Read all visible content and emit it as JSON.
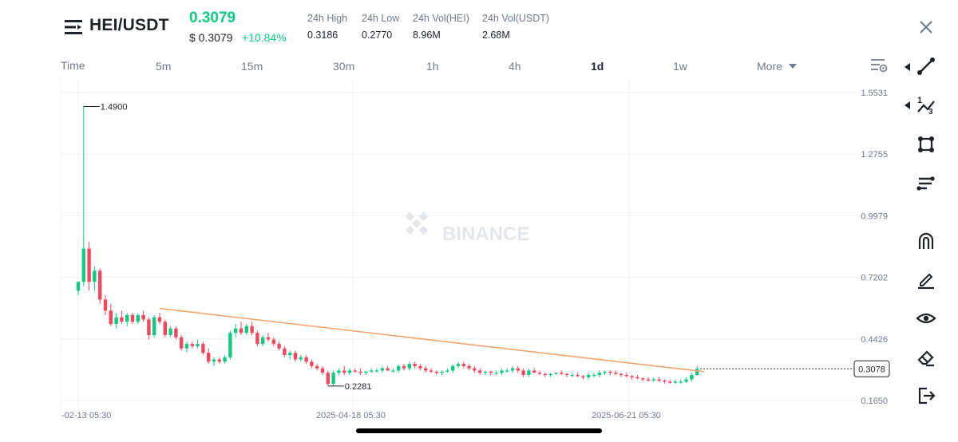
{
  "header": {
    "pair": "HEI/USDT",
    "last_price": "0.3079",
    "usd_price": "$ 0.3079",
    "change": "+10.84%",
    "stats": [
      {
        "label": "24h High",
        "value": "0.3186"
      },
      {
        "label": "24h Low",
        "value": "0.2770"
      },
      {
        "label": "24h Vol(HEI)",
        "value": "8.96M"
      },
      {
        "label": "24h Vol(USDT)",
        "value": "2.68M"
      }
    ]
  },
  "timeframes": {
    "time_label": "Time",
    "items": [
      "5m",
      "15m",
      "30m",
      "1h",
      "4h",
      "1d",
      "1w"
    ],
    "active": "1d",
    "more_label": "More"
  },
  "watermark": "BINANCE",
  "colors": {
    "up": "#0ecb81",
    "down": "#f6465d",
    "trendline": "#f0a46c",
    "grid": "#eef0f2"
  },
  "tools": [
    "trend-line-icon",
    "fibonacci-icon",
    "shape-icon",
    "multi-line-icon",
    "magnet-icon",
    "pencil-icon",
    "eye-icon",
    "eraser-icon",
    "exit-icon"
  ],
  "chart_data": {
    "type": "candlestick",
    "interval": "1d",
    "y_ticks": [
      "1.5531",
      "1.2755",
      "0.9979",
      "0.7202",
      "0.4426",
      "0.1650"
    ],
    "ylim": [
      0.165,
      1.5531
    ],
    "x_ticks": [
      "-02-13 05:30",
      "2025-04-18 05:30",
      "2025-06-21 05:30"
    ],
    "annotations": {
      "high_label": "1.4900",
      "low_label": "0.2281",
      "current_price": "0.3078"
    },
    "ohlc": [
      [
        0.66,
        0.7,
        0.64,
        0.7
      ],
      [
        0.7,
        1.49,
        0.68,
        0.85
      ],
      [
        0.85,
        0.88,
        0.66,
        0.7
      ],
      [
        0.7,
        0.77,
        0.66,
        0.75
      ],
      [
        0.75,
        0.76,
        0.6,
        0.62
      ],
      [
        0.62,
        0.64,
        0.55,
        0.57
      ],
      [
        0.57,
        0.6,
        0.5,
        0.51
      ],
      [
        0.51,
        0.56,
        0.49,
        0.54
      ],
      [
        0.54,
        0.57,
        0.51,
        0.52
      ],
      [
        0.52,
        0.56,
        0.5,
        0.55
      ],
      [
        0.55,
        0.56,
        0.51,
        0.52
      ],
      [
        0.52,
        0.56,
        0.51,
        0.55
      ],
      [
        0.55,
        0.57,
        0.52,
        0.53
      ],
      [
        0.53,
        0.54,
        0.44,
        0.46
      ],
      [
        0.46,
        0.55,
        0.45,
        0.54
      ],
      [
        0.54,
        0.56,
        0.51,
        0.52
      ],
      [
        0.52,
        0.53,
        0.45,
        0.46
      ],
      [
        0.46,
        0.5,
        0.45,
        0.49
      ],
      [
        0.49,
        0.5,
        0.44,
        0.45
      ],
      [
        0.45,
        0.46,
        0.39,
        0.4
      ],
      [
        0.4,
        0.43,
        0.38,
        0.42
      ],
      [
        0.42,
        0.43,
        0.4,
        0.41
      ],
      [
        0.41,
        0.44,
        0.4,
        0.42
      ],
      [
        0.42,
        0.43,
        0.37,
        0.38
      ],
      [
        0.38,
        0.4,
        0.33,
        0.34
      ],
      [
        0.34,
        0.36,
        0.32,
        0.35
      ],
      [
        0.35,
        0.36,
        0.33,
        0.34
      ],
      [
        0.34,
        0.37,
        0.33,
        0.36
      ],
      [
        0.36,
        0.48,
        0.35,
        0.47
      ],
      [
        0.47,
        0.51,
        0.45,
        0.49
      ],
      [
        0.49,
        0.52,
        0.46,
        0.47
      ],
      [
        0.47,
        0.51,
        0.46,
        0.5
      ],
      [
        0.5,
        0.52,
        0.46,
        0.47
      ],
      [
        0.47,
        0.48,
        0.41,
        0.42
      ],
      [
        0.42,
        0.46,
        0.41,
        0.45
      ],
      [
        0.45,
        0.47,
        0.43,
        0.44
      ],
      [
        0.44,
        0.45,
        0.41,
        0.42
      ],
      [
        0.42,
        0.43,
        0.39,
        0.4
      ],
      [
        0.4,
        0.41,
        0.36,
        0.37
      ],
      [
        0.37,
        0.39,
        0.35,
        0.38
      ],
      [
        0.38,
        0.39,
        0.34,
        0.35
      ],
      [
        0.35,
        0.37,
        0.34,
        0.36
      ],
      [
        0.36,
        0.37,
        0.33,
        0.34
      ],
      [
        0.34,
        0.35,
        0.31,
        0.32
      ],
      [
        0.32,
        0.33,
        0.3,
        0.31
      ],
      [
        0.31,
        0.32,
        0.28,
        0.29
      ],
      [
        0.29,
        0.3,
        0.23,
        0.24
      ],
      [
        0.24,
        0.3,
        0.23,
        0.29
      ],
      [
        0.29,
        0.31,
        0.28,
        0.3
      ],
      [
        0.3,
        0.32,
        0.28,
        0.29
      ],
      [
        0.29,
        0.31,
        0.28,
        0.3
      ],
      [
        0.3,
        0.31,
        0.29,
        0.295
      ],
      [
        0.295,
        0.31,
        0.28,
        0.29
      ],
      [
        0.29,
        0.3,
        0.28,
        0.295
      ],
      [
        0.295,
        0.31,
        0.29,
        0.3
      ],
      [
        0.3,
        0.31,
        0.29,
        0.3
      ],
      [
        0.3,
        0.32,
        0.29,
        0.31
      ],
      [
        0.31,
        0.32,
        0.3,
        0.3
      ],
      [
        0.3,
        0.31,
        0.29,
        0.3
      ],
      [
        0.3,
        0.33,
        0.29,
        0.32
      ],
      [
        0.32,
        0.33,
        0.3,
        0.31
      ],
      [
        0.31,
        0.34,
        0.3,
        0.33
      ],
      [
        0.33,
        0.34,
        0.31,
        0.32
      ],
      [
        0.32,
        0.33,
        0.3,
        0.31
      ],
      [
        0.31,
        0.32,
        0.29,
        0.3
      ],
      [
        0.3,
        0.31,
        0.29,
        0.295
      ],
      [
        0.295,
        0.3,
        0.28,
        0.29
      ],
      [
        0.29,
        0.3,
        0.28,
        0.295
      ],
      [
        0.295,
        0.31,
        0.29,
        0.3
      ],
      [
        0.3,
        0.33,
        0.29,
        0.32
      ],
      [
        0.32,
        0.34,
        0.31,
        0.33
      ],
      [
        0.33,
        0.34,
        0.31,
        0.32
      ],
      [
        0.32,
        0.33,
        0.3,
        0.31
      ],
      [
        0.31,
        0.32,
        0.29,
        0.3
      ],
      [
        0.3,
        0.31,
        0.28,
        0.29
      ],
      [
        0.29,
        0.3,
        0.28,
        0.295
      ],
      [
        0.295,
        0.3,
        0.28,
        0.29
      ],
      [
        0.29,
        0.3,
        0.28,
        0.29
      ],
      [
        0.29,
        0.31,
        0.28,
        0.3
      ],
      [
        0.3,
        0.31,
        0.29,
        0.3
      ],
      [
        0.3,
        0.32,
        0.29,
        0.31
      ],
      [
        0.31,
        0.32,
        0.29,
        0.3
      ],
      [
        0.3,
        0.31,
        0.27,
        0.28
      ],
      [
        0.28,
        0.31,
        0.27,
        0.3
      ],
      [
        0.3,
        0.31,
        0.29,
        0.29
      ],
      [
        0.29,
        0.3,
        0.28,
        0.285
      ],
      [
        0.285,
        0.29,
        0.27,
        0.28
      ],
      [
        0.28,
        0.29,
        0.27,
        0.285
      ],
      [
        0.285,
        0.29,
        0.28,
        0.29
      ],
      [
        0.29,
        0.3,
        0.28,
        0.285
      ],
      [
        0.285,
        0.29,
        0.27,
        0.28
      ],
      [
        0.28,
        0.29,
        0.27,
        0.28
      ],
      [
        0.28,
        0.29,
        0.27,
        0.275
      ],
      [
        0.275,
        0.28,
        0.26,
        0.27
      ],
      [
        0.27,
        0.29,
        0.26,
        0.28
      ],
      [
        0.28,
        0.29,
        0.27,
        0.28
      ],
      [
        0.28,
        0.3,
        0.27,
        0.29
      ],
      [
        0.29,
        0.3,
        0.28,
        0.295
      ],
      [
        0.295,
        0.3,
        0.28,
        0.29
      ],
      [
        0.29,
        0.3,
        0.28,
        0.285
      ],
      [
        0.285,
        0.29,
        0.27,
        0.28
      ],
      [
        0.28,
        0.29,
        0.27,
        0.275
      ],
      [
        0.275,
        0.28,
        0.26,
        0.27
      ],
      [
        0.27,
        0.28,
        0.26,
        0.265
      ],
      [
        0.265,
        0.27,
        0.25,
        0.26
      ],
      [
        0.26,
        0.27,
        0.25,
        0.255
      ],
      [
        0.255,
        0.27,
        0.25,
        0.26
      ],
      [
        0.26,
        0.27,
        0.25,
        0.255
      ],
      [
        0.255,
        0.26,
        0.24,
        0.25
      ],
      [
        0.25,
        0.26,
        0.24,
        0.245
      ],
      [
        0.245,
        0.26,
        0.24,
        0.25
      ],
      [
        0.25,
        0.26,
        0.24,
        0.25
      ],
      [
        0.25,
        0.27,
        0.245,
        0.26
      ],
      [
        0.26,
        0.29,
        0.25,
        0.28
      ],
      [
        0.28,
        0.32,
        0.277,
        0.3079
      ]
    ],
    "trendline": {
      "start_index": 15,
      "start_price": 0.58,
      "end_index": 115,
      "end_price": 0.295
    }
  }
}
